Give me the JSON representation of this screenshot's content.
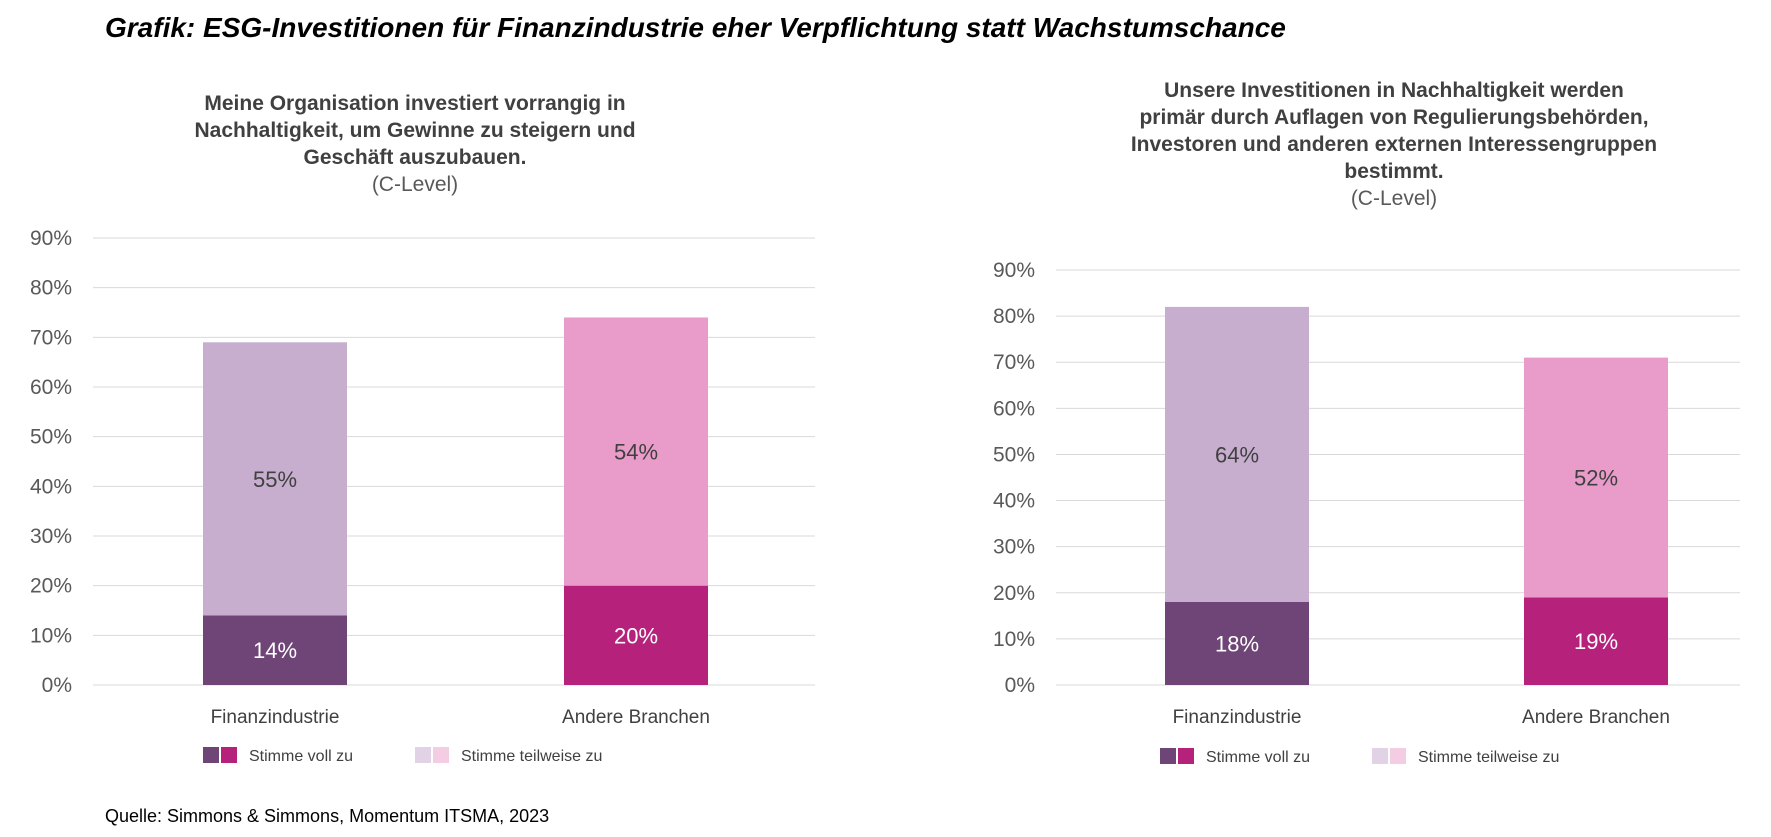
{
  "title": "Grafik: ESG-Investitionen für Finanzindustrie eher Verpflichtung statt Wachstumschance",
  "source": "Quelle: Simmons & Simmons, Momentum ITSMA, 2023",
  "colors": {
    "fin_full": "#6e4576",
    "fin_partial": "#c7aece",
    "other_full": "#b6217c",
    "other_partial": "#e99bca",
    "legend_fin_partial": "#e1d3e5",
    "legend_other_partial": "#f4cce3",
    "grid": "#d9d9d9"
  },
  "chart_data": [
    {
      "type": "bar",
      "stacked": true,
      "title": [
        "Meine Organisation investiert vorrangig in",
        "Nachhaltigkeit, um Gewinne zu steigern und",
        "Geschäft auszubauen."
      ],
      "subtitle": "(C-Level)",
      "categories": [
        "Finanzindustrie",
        "Andere Branchen"
      ],
      "series": [
        {
          "name": "Stimme voll zu",
          "values": [
            14,
            20
          ],
          "labels": [
            "14%",
            "20%"
          ]
        },
        {
          "name": "Stimme teilweise zu",
          "values": [
            55,
            54
          ],
          "labels": [
            "55%",
            "54%"
          ]
        }
      ],
      "yticks": [
        "0%",
        "10%",
        "20%",
        "30%",
        "40%",
        "50%",
        "60%",
        "70%",
        "80%",
        "90%"
      ],
      "ylim": [
        0,
        90
      ],
      "grid": true,
      "legend": "bottom"
    },
    {
      "type": "bar",
      "stacked": true,
      "title": [
        "Unsere Investitionen in Nachhaltigkeit werden",
        "primär durch Auflagen von Regulierungsbehörden,",
        "Investoren und anderen externen Interessengruppen",
        "bestimmt."
      ],
      "subtitle": "(C-Level)",
      "categories": [
        "Finanzindustrie",
        "Andere Branchen"
      ],
      "series": [
        {
          "name": "Stimme voll zu",
          "values": [
            18,
            19
          ],
          "labels": [
            "18%",
            "19%"
          ]
        },
        {
          "name": "Stimme teilweise zu",
          "values": [
            64,
            52
          ],
          "labels": [
            "64%",
            "52%"
          ]
        }
      ],
      "yticks": [
        "0%",
        "10%",
        "20%",
        "30%",
        "40%",
        "50%",
        "60%",
        "70%",
        "80%",
        "90%"
      ],
      "ylim": [
        0,
        90
      ],
      "grid": true,
      "legend": "bottom"
    }
  ]
}
